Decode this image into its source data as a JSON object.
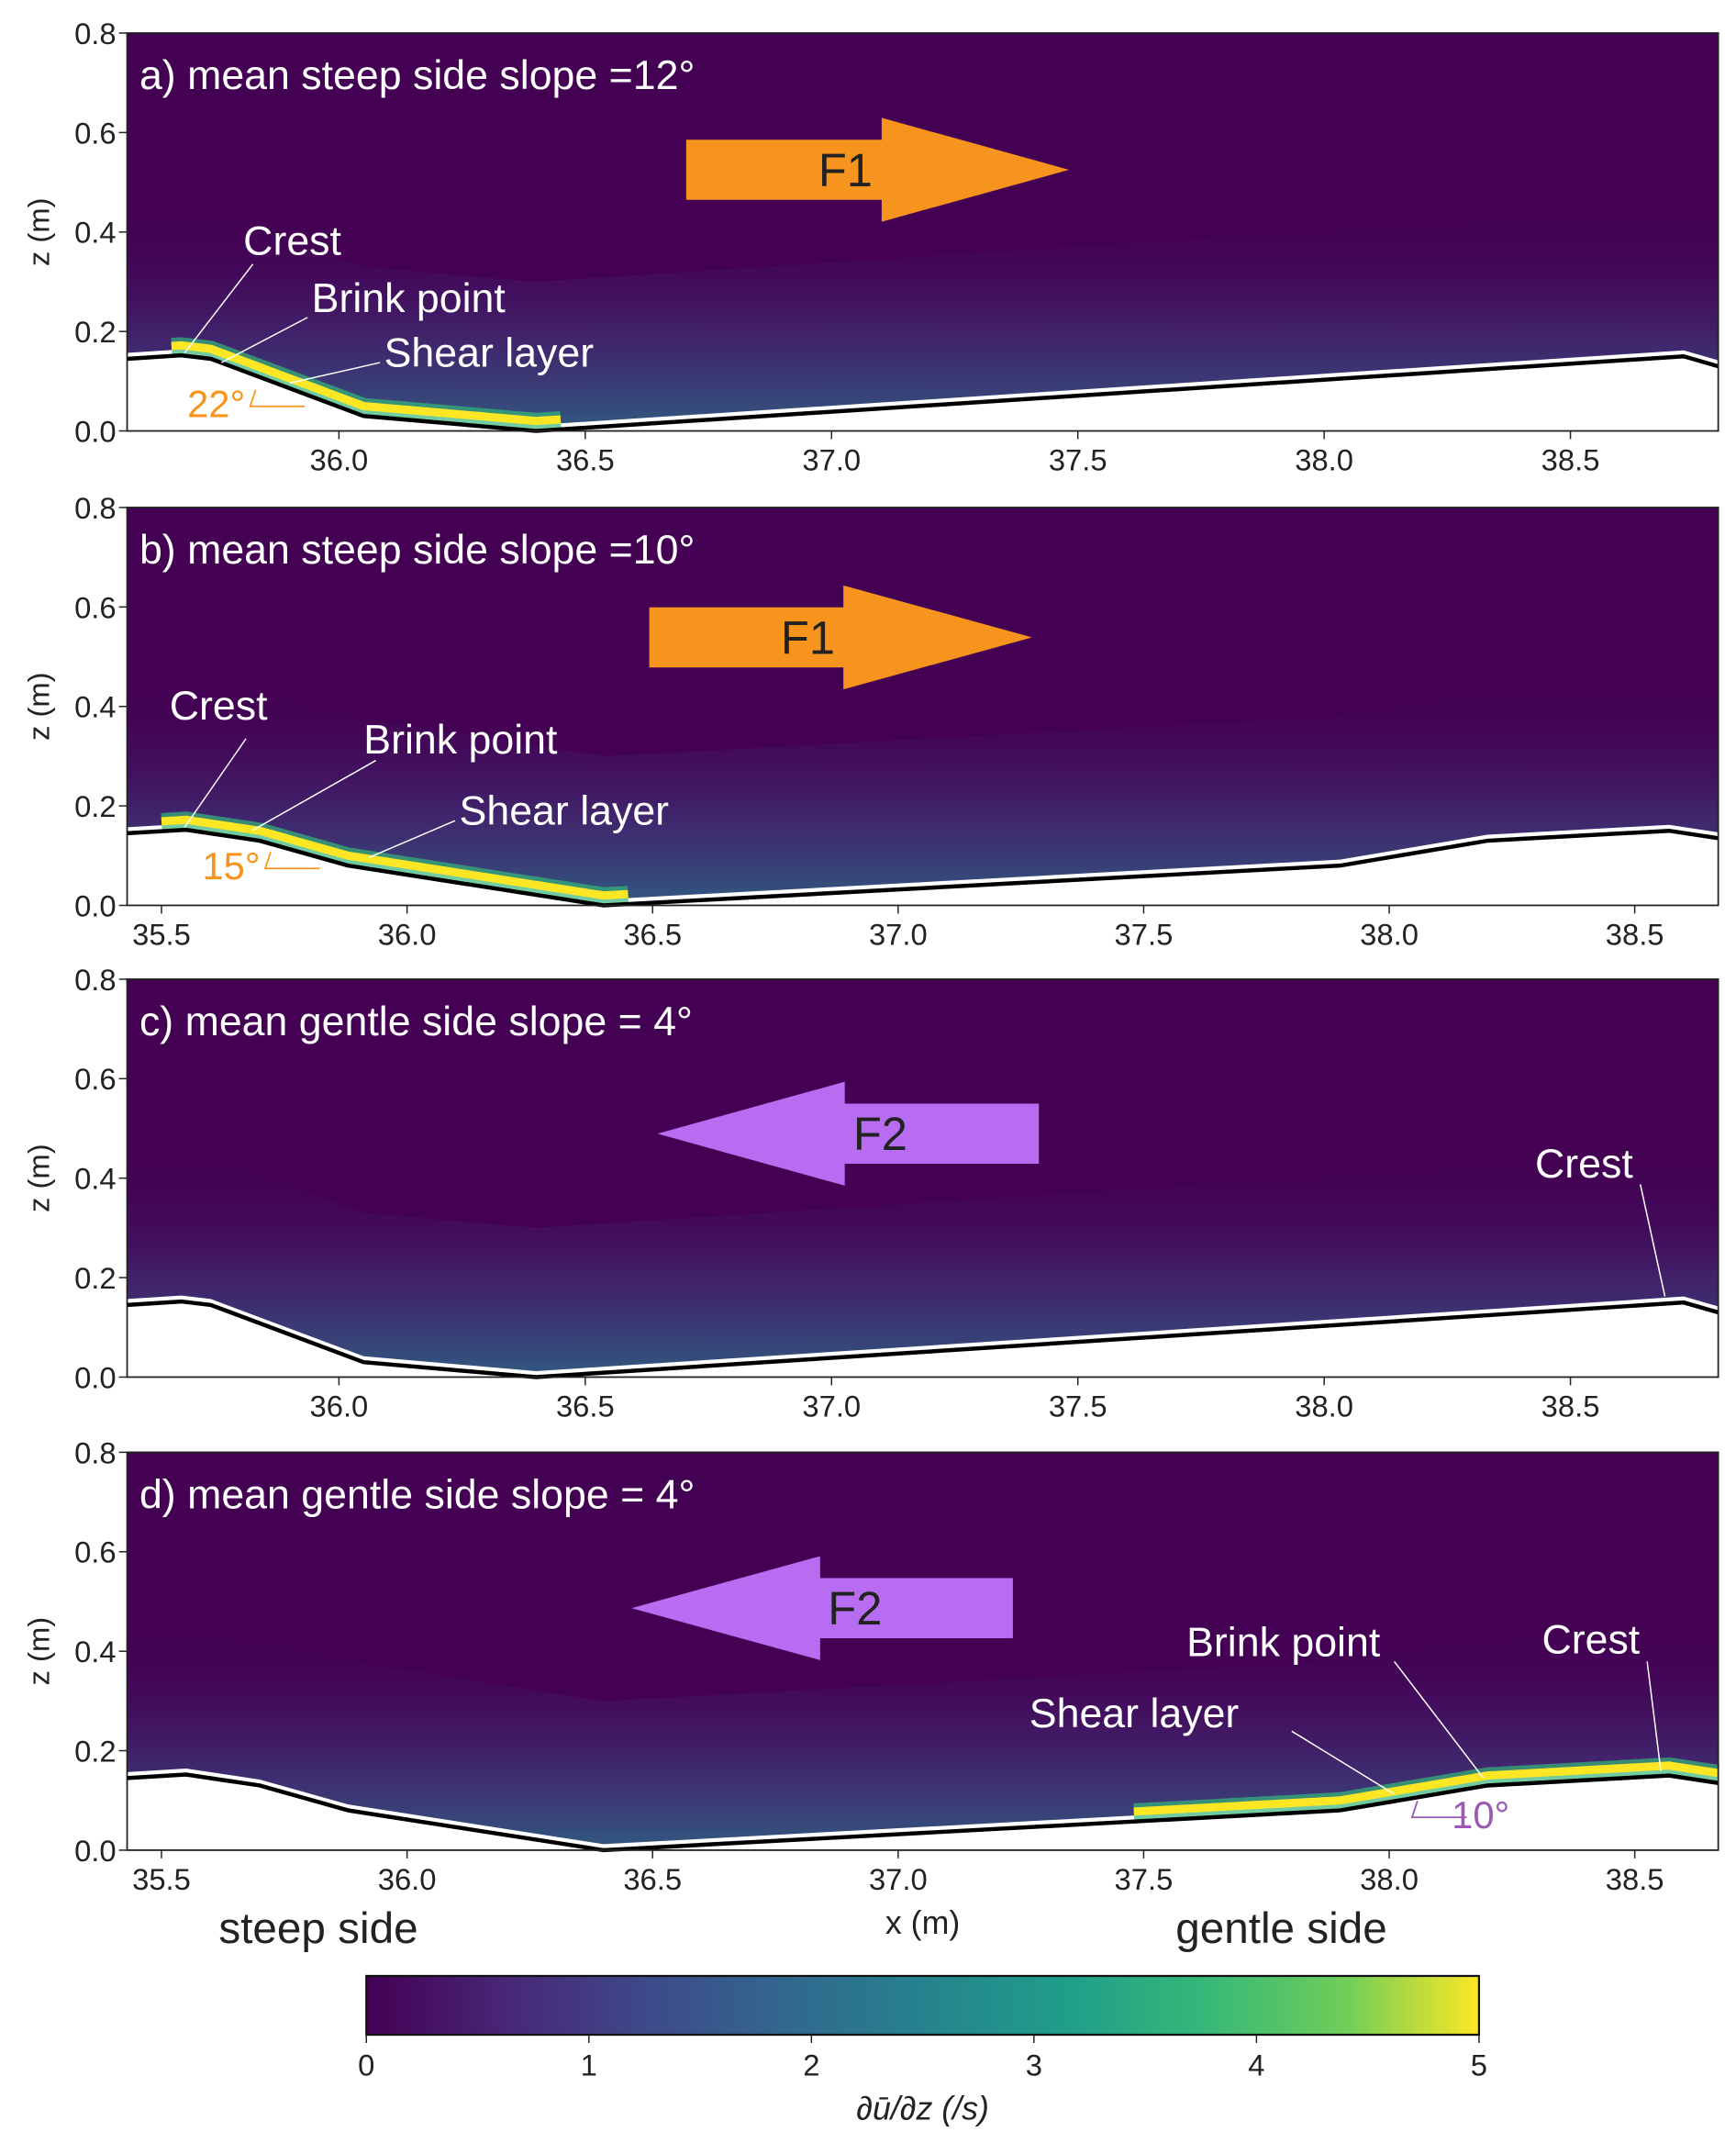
{
  "chart_data": [
    {
      "type": "heatmap",
      "panel_label": "a) mean steep side slope =12°",
      "xlim": [
        35.57,
        38.8
      ],
      "ylim": [
        0,
        0.8
      ],
      "xticks": [
        "36.0",
        "36.5",
        "37.0",
        "37.5",
        "38.0",
        "38.5"
      ],
      "yticks": [
        "0.0",
        "0.2",
        "0.4",
        "0.6",
        "0.8"
      ],
      "ylabel": "z (m)",
      "bed_profile": {
        "x": [
          35.57,
          35.68,
          35.74,
          36.05,
          36.4,
          38.73,
          38.8
        ],
        "z": [
          0.145,
          0.152,
          0.145,
          0.03,
          0.0,
          0.15,
          0.13
        ]
      },
      "high_shear_x": [
        35.66,
        36.45
      ],
      "annotations": [
        "Crest",
        "Brink point",
        "Shear layer"
      ],
      "angle_label": "22°",
      "flow_arrow": {
        "label": "F1",
        "direction": "right",
        "color": "#f7941d"
      }
    },
    {
      "type": "heatmap",
      "panel_label": "b) mean steep side slope =10°",
      "xlim": [
        35.43,
        38.67
      ],
      "ylim": [
        0,
        0.8
      ],
      "xticks": [
        "35.5",
        "36.0",
        "36.5",
        "37.0",
        "37.5",
        "38.0",
        "38.5"
      ],
      "yticks": [
        "0.0",
        "0.2",
        "0.4",
        "0.6",
        "0.8"
      ],
      "ylabel": "z (m)",
      "bed_profile": {
        "x": [
          35.43,
          35.55,
          35.7,
          35.88,
          36.4,
          37.9,
          38.2,
          38.57,
          38.67
        ],
        "z": [
          0.145,
          0.152,
          0.13,
          0.08,
          0.0,
          0.08,
          0.13,
          0.15,
          0.135
        ]
      },
      "high_shear_x": [
        35.5,
        36.45
      ],
      "annotations": [
        "Crest",
        "Brink point",
        "Shear layer"
      ],
      "angle_label": "15°",
      "flow_arrow": {
        "label": "F1",
        "direction": "right",
        "color": "#f7941d"
      }
    },
    {
      "type": "heatmap",
      "panel_label": "c) mean gentle side slope = 4°",
      "xlim": [
        35.57,
        38.8
      ],
      "ylim": [
        0,
        0.8
      ],
      "xticks": [
        "36.0",
        "36.5",
        "37.0",
        "37.5",
        "38.0",
        "38.5"
      ],
      "yticks": [
        "0.0",
        "0.2",
        "0.4",
        "0.6",
        "0.8"
      ],
      "ylabel": "z (m)",
      "bed_profile": {
        "x": [
          35.57,
          35.68,
          35.74,
          36.05,
          36.4,
          38.73,
          38.8
        ],
        "z": [
          0.145,
          0.152,
          0.145,
          0.03,
          0.0,
          0.15,
          0.13
        ]
      },
      "high_shear_x": [],
      "annotations": [
        "Crest"
      ],
      "angle_label": "",
      "flow_arrow": {
        "label": "F2",
        "direction": "left",
        "color": "#b86cf2"
      }
    },
    {
      "type": "heatmap",
      "panel_label": "d) mean gentle side slope = 4°",
      "xlim": [
        35.43,
        38.67
      ],
      "ylim": [
        0,
        0.8
      ],
      "xticks": [
        "35.5",
        "36.0",
        "36.5",
        "37.0",
        "37.5",
        "38.0",
        "38.5"
      ],
      "yticks": [
        "0.0",
        "0.2",
        "0.4",
        "0.6",
        "0.8"
      ],
      "ylabel": "z (m)",
      "xlabel": "x (m)",
      "bed_profile": {
        "x": [
          35.43,
          35.55,
          35.7,
          35.88,
          36.4,
          37.9,
          38.2,
          38.57,
          38.67
        ],
        "z": [
          0.145,
          0.152,
          0.13,
          0.08,
          0.0,
          0.08,
          0.13,
          0.15,
          0.135
        ]
      },
      "high_shear_x": [
        37.48,
        38.67
      ],
      "annotations": [
        "Brink point",
        "Shear layer",
        "Crest"
      ],
      "angle_label": "10°",
      "flow_arrow": {
        "label": "F2",
        "direction": "left",
        "color": "#b86cf2"
      }
    }
  ],
  "side_labels": {
    "steep": "steep side",
    "gentle": "gentle side"
  },
  "colorbar": {
    "colormap": "viridis",
    "range": [
      0,
      5
    ],
    "ticks": [
      "0",
      "1",
      "2",
      "3",
      "4",
      "5"
    ],
    "label": "∂ū/∂z (/s)"
  },
  "colors": {
    "background": "#440154",
    "high": "#fde725",
    "angle_a_b": "#f7941d",
    "angle_d": "#9b59b6"
  }
}
